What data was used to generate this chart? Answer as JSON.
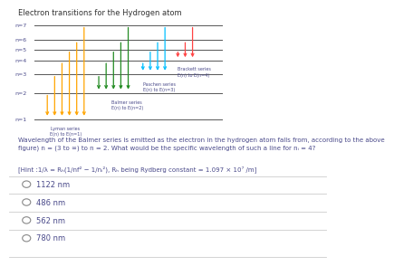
{
  "title": "Electron transitions for the Hydrogen atom",
  "bg_color": "#ffffff",
  "lyman_color": "#FFA500",
  "balmer_color": "#228B22",
  "paschen_color": "#00BFFF",
  "brackett_color": "#FF4444",
  "lyman_label": "Lyman series\nE(n) to E(n=1)",
  "balmer_label": "Balmer series\nE(n) to E(n=2)",
  "paschen_label": "Paschen series\nE(n) to E(n=3)",
  "brackett_label": "Brackett series\nE(n) to E(n=4)",
  "question_text": "Wavelength of the Balmer series is emitted as the electron in the hydrogen atom falls from, according to the above\nfigure) n = (3 to ∞) to n = 2. What would be the specific wavelength of such a line for nᵢ = 4?",
  "hint_text": "[Hint :1/λ = Rₕ(1/nf² − 1/nᵢ²), Rₕ being Rydberg constant = 1.097 × 10⁷ /m]",
  "options": [
    "1122 nm",
    "486 nm",
    "562 nm",
    "780 nm"
  ],
  "text_color": "#4a4a8a",
  "line_color": "#555555",
  "option_line_color": "#cccccc",
  "level_pos": {
    "1": 0.0,
    "2": 0.28,
    "3": 0.48,
    "4": 0.62,
    "5": 0.74,
    "6": 0.84,
    "7": 1.0
  }
}
